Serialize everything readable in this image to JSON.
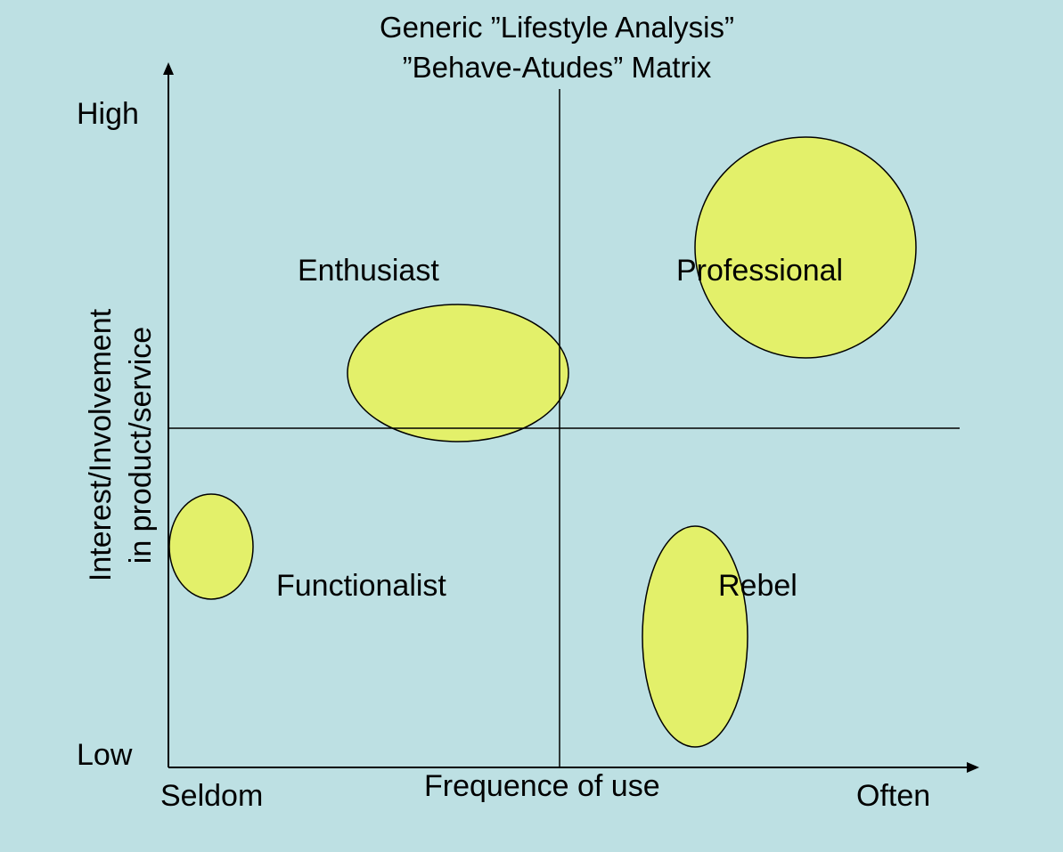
{
  "title": {
    "line1": "Generic ”Lifestyle Analysis”",
    "line2": "”Behave-Atudes” Matrix"
  },
  "axes": {
    "y_high": "High",
    "y_low": "Low",
    "y_label_line1": "Interest/Involvement",
    "y_label_line2": "in product/service",
    "x_low": "Seldom",
    "x_label": "Frequence of use",
    "x_high": "Often"
  },
  "segments": [
    {
      "id": "enthusiast",
      "label": "Enthusiast"
    },
    {
      "id": "professional",
      "label": "Professional"
    },
    {
      "id": "functionalist",
      "label": "Functionalist"
    },
    {
      "id": "rebel",
      "label": "Rebel"
    }
  ],
  "colors": {
    "background": "#bde0e3",
    "ellipse_fill": "#e3f06a",
    "line": "#000000"
  }
}
